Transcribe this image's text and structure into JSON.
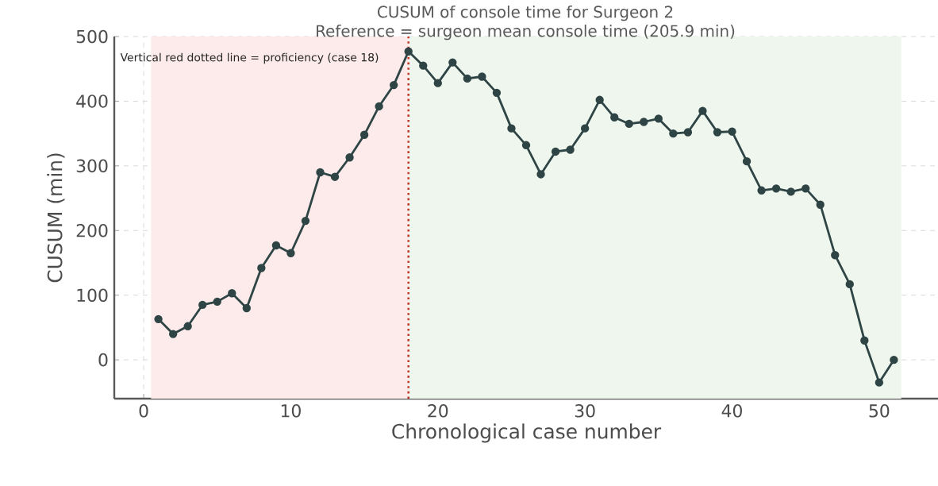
{
  "chart_data": {
    "type": "line",
    "title": "CUSUM of console time for Surgeon 2",
    "subtitle": "Reference = surgeon mean console time (205.9 min)",
    "xlabel": "Chronological case number",
    "ylabel": "CUSUM (min)",
    "annotations": [
      "Vertical red dotted line = proficiency (case 18)"
    ],
    "x": [
      1,
      2,
      3,
      4,
      5,
      6,
      7,
      8,
      9,
      10,
      11,
      12,
      13,
      14,
      15,
      16,
      17,
      18,
      19,
      20,
      21,
      22,
      23,
      24,
      25,
      26,
      27,
      28,
      29,
      30,
      31,
      32,
      33,
      34,
      35,
      36,
      37,
      38,
      39,
      40,
      41,
      42,
      43,
      44,
      45,
      46,
      47,
      48,
      49,
      50,
      51
    ],
    "series": [
      {
        "color": "#2f4545",
        "values": [
          63,
          40,
          52,
          85,
          90,
          103,
          80,
          142,
          177,
          165,
          215,
          290,
          283,
          313,
          348,
          392,
          425,
          477,
          455,
          428,
          460,
          435,
          438,
          413,
          358,
          332,
          287,
          322,
          325,
          358,
          402,
          375,
          365,
          368,
          373,
          350,
          352,
          385,
          352,
          353,
          307,
          262,
          265,
          260,
          265,
          240,
          162,
          117,
          30,
          -35,
          0
        ]
      }
    ],
    "xlim": [
      -2,
      54
    ],
    "ylim": [
      -60,
      500
    ],
    "xticks": [
      0,
      10,
      20,
      30,
      40,
      50
    ],
    "yticks": [
      0,
      100,
      200,
      300,
      400,
      500
    ],
    "grid": true,
    "marker": "circle",
    "line_style": "solid",
    "ref_lines": [
      {
        "axis": "x",
        "value": 18,
        "color": "#c0392b",
        "line_style": "dotted"
      }
    ],
    "bands": [
      {
        "axis": "x",
        "from": 0.5,
        "to": 18,
        "color": "#fcebea"
      },
      {
        "axis": "x",
        "from": 18,
        "to": 51.5,
        "color": "#eff6ee"
      }
    ]
  }
}
